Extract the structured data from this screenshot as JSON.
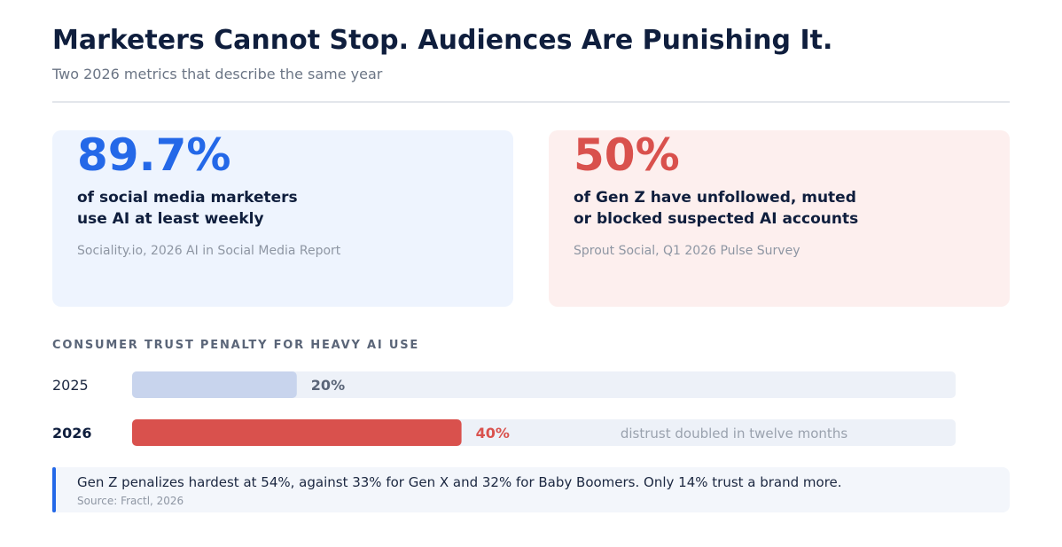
{
  "header": {
    "title": "Marketers Cannot Stop. Audiences Are Punishing It.",
    "subtitle": "Two 2026 metrics that describe the same year"
  },
  "cards": [
    {
      "value": "89.7%",
      "line1": "of social media marketers",
      "line2": "use AI at least weekly",
      "source": "Sociality.io, 2026 AI in Social Media Report",
      "color": "#2468e8",
      "background": "#eef4fe"
    },
    {
      "value": "50%",
      "line1": "of Gen Z have unfollowed, muted",
      "line2": "or blocked suspected AI accounts",
      "source": "Sprout Social, Q1 2026 Pulse Survey",
      "color": "#d9514d",
      "background": "#fdefee"
    }
  ],
  "chart_data": {
    "type": "bar",
    "orientation": "horizontal",
    "title": "CONSUMER TRUST PENALTY FOR HEAVY AI USE",
    "categories": [
      "2025",
      "2026"
    ],
    "values": [
      20,
      40
    ],
    "value_labels": [
      "20%",
      "40%"
    ],
    "xlim": [
      0,
      100
    ],
    "colors": [
      "#c8d4ed",
      "#d9514d"
    ],
    "label_colors": [
      "#5a6578",
      "#d9514d"
    ],
    "track_color": "#edf1f8",
    "bold_categories": [
      false,
      true
    ],
    "annotation": "distrust doubled in twelve months",
    "grid": false,
    "legend": "none"
  },
  "callout": {
    "text": "Gen Z penalizes hardest at 54%, against 33% for Gen X and 32% for Baby Boomers. Only 14% trust a brand more.",
    "source": "Source: Fractl, 2026",
    "accent_color": "#2468e8"
  }
}
